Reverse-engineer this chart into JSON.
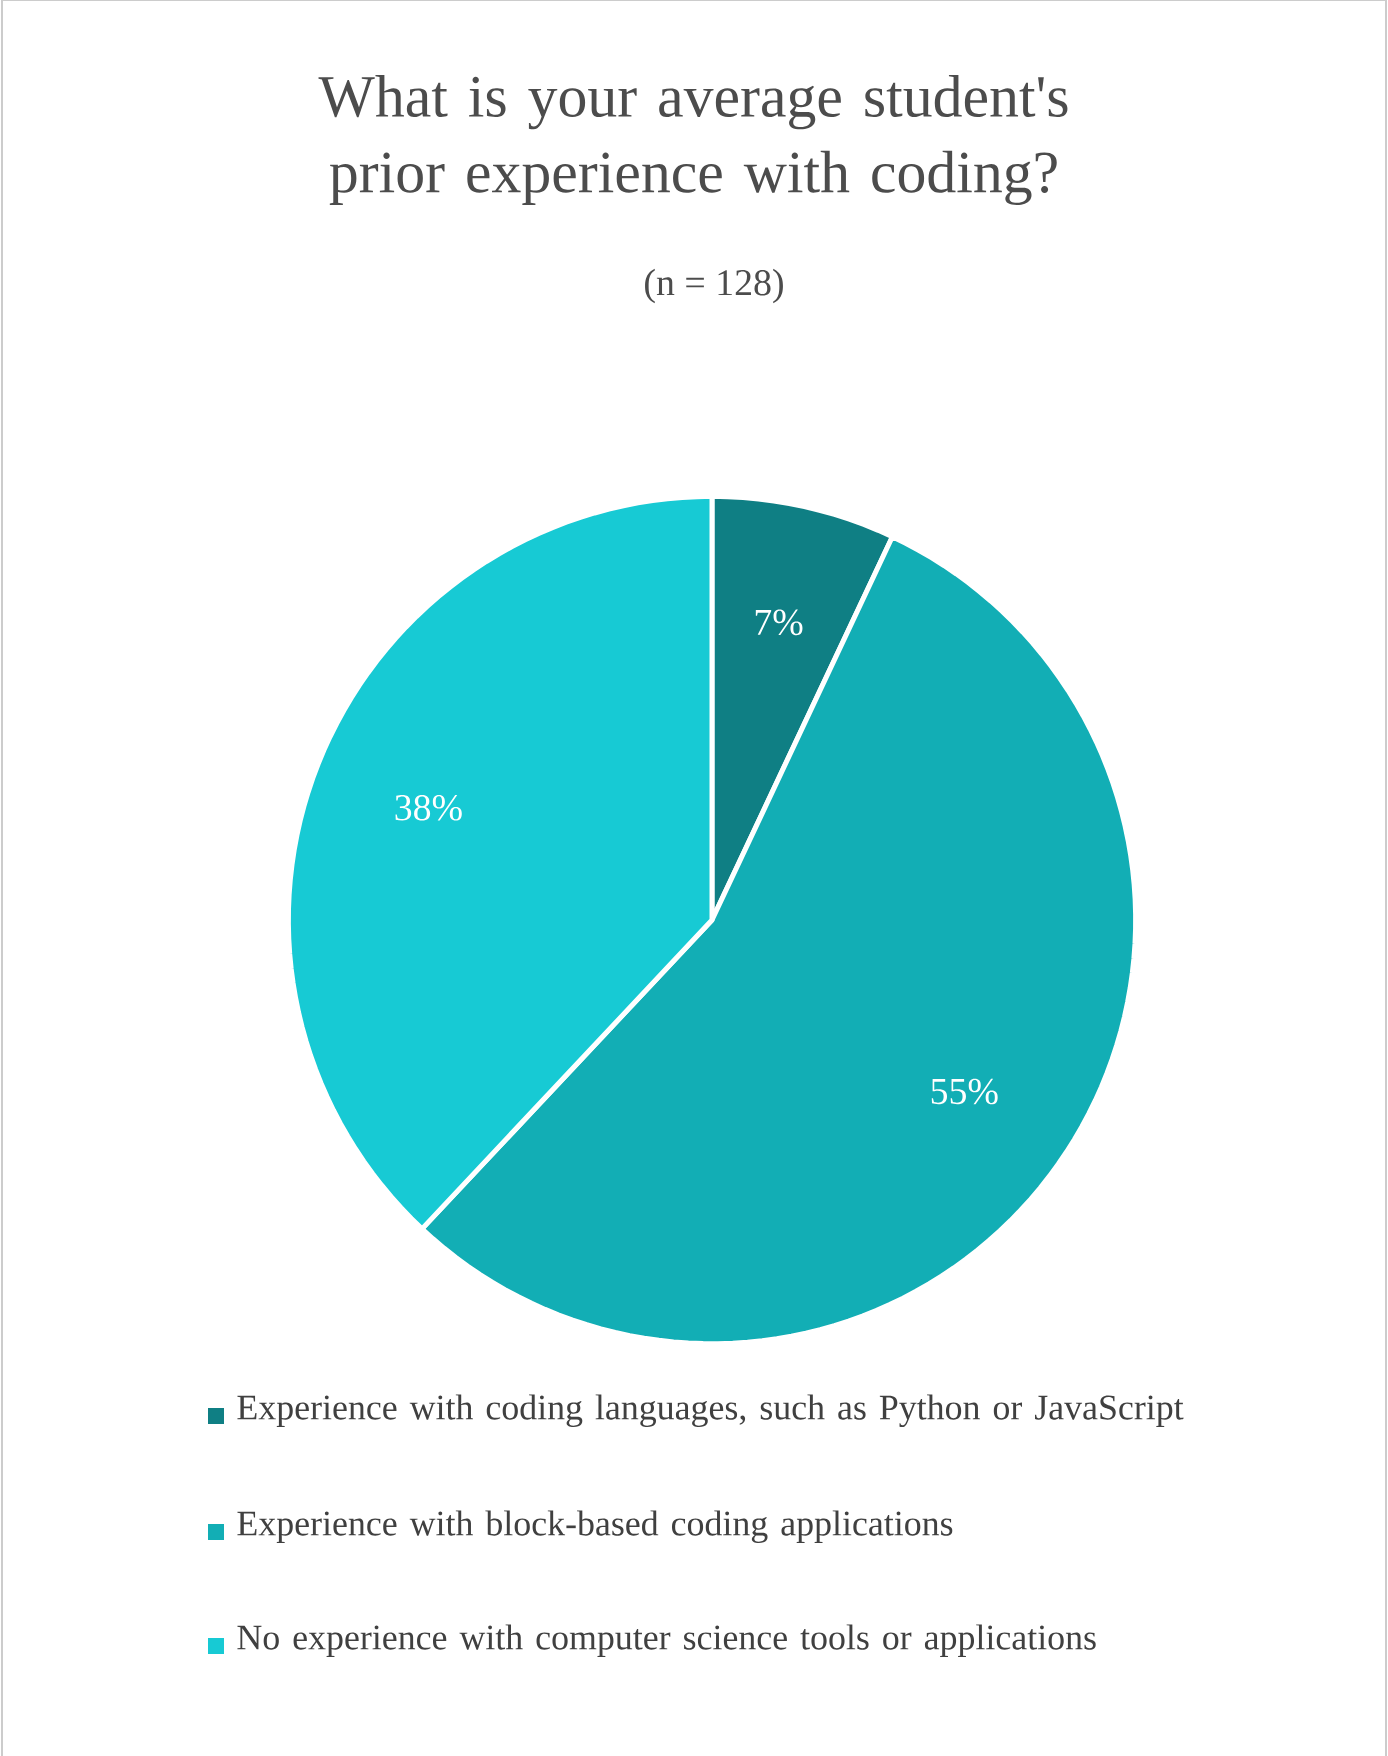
{
  "chart_data": {
    "type": "pie",
    "title": "What is your average student's prior experience with coding?",
    "subtitle": "(n = 128)",
    "categories": [
      "Experience with coding languages, such as Python or JavaScript",
      "Experience with block-based coding applications",
      "No experience with computer science tools or applications"
    ],
    "values": [
      7,
      55,
      38
    ],
    "value_labels": [
      "7%",
      "55%",
      "38%"
    ],
    "colors": [
      "#0f7f84",
      "#12aeb5",
      "#17cad4"
    ],
    "legend": "bottom"
  }
}
